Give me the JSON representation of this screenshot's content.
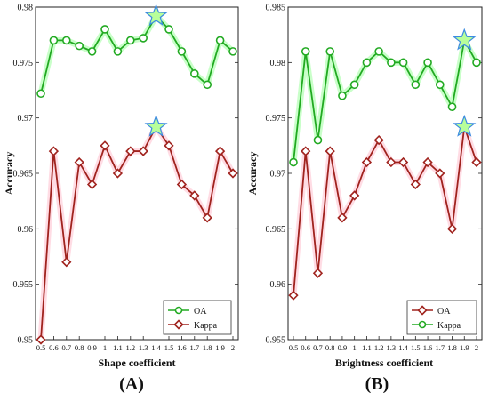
{
  "panels": [
    {
      "panel_label": "(A)",
      "chart_data": {
        "type": "line",
        "xlabel": "Shape coefficient",
        "ylabel": "Accuracy",
        "x": [
          "0.5",
          "0.6",
          "0.7",
          "0.8",
          "0.9",
          "1",
          "1.1",
          "1.2",
          "1.3",
          "1.4",
          "1.5",
          "1.6",
          "1.7",
          "1.8",
          "1.9",
          "2"
        ],
        "ylim": [
          0.95,
          0.98
        ],
        "yticks": [
          "0.95",
          "0.955",
          "0.96",
          "0.965",
          "0.97",
          "0.975",
          "0.98"
        ],
        "legend_position": "bottom-right",
        "legend": [
          "OA",
          "Kappa"
        ],
        "series": [
          {
            "name": "OA",
            "color": "#22aa22",
            "marker": "circle",
            "values": [
              0.9722,
              0.977,
              0.977,
              0.9765,
              0.976,
              0.978,
              0.976,
              0.977,
              0.9772,
              0.9792,
              0.978,
              0.976,
              0.974,
              0.973,
              0.977,
              0.976
            ]
          },
          {
            "name": "Kappa",
            "color": "#a0231e",
            "marker": "diamond",
            "values": [
              0.95,
              0.967,
              0.957,
              0.966,
              0.964,
              0.9675,
              0.965,
              0.967,
              0.967,
              0.9692,
              0.9675,
              0.964,
              0.963,
              0.961,
              0.967,
              0.965
            ]
          }
        ],
        "best_markers": [
          {
            "x": "1.4",
            "y": 0.9792
          },
          {
            "x": "1.4",
            "y": 0.9692
          }
        ]
      }
    },
    {
      "panel_label": "(B)",
      "chart_data": {
        "type": "line",
        "xlabel": "Brightness coefficient",
        "ylabel": "Accuracy",
        "x": [
          "0.5",
          "0.6",
          "0.7",
          "0.8",
          "0.9",
          "1",
          "1.1",
          "1.2",
          "1.3",
          "1.4",
          "1.5",
          "1.6",
          "1.7",
          "1.8",
          "1.9",
          "2"
        ],
        "ylim": [
          0.955,
          0.985
        ],
        "yticks": [
          "0.955",
          "0.96",
          "0.965",
          "0.97",
          "0.975",
          "0.98",
          "0.985"
        ],
        "legend_position": "bottom-right",
        "legend": [
          "OA",
          "Kappa"
        ],
        "series": [
          {
            "name": "OA",
            "color": "#a0231e",
            "marker": "diamond",
            "values": [
              0.959,
              0.972,
              0.961,
              0.972,
              0.966,
              0.968,
              0.971,
              0.973,
              0.971,
              0.971,
              0.969,
              0.971,
              0.97,
              0.965,
              0.9742,
              0.971
            ]
          },
          {
            "name": "Kappa",
            "color": "#22aa22",
            "marker": "circle",
            "values": [
              0.971,
              0.981,
              0.973,
              0.981,
              0.977,
              0.978,
              0.98,
              0.981,
              0.98,
              0.98,
              0.978,
              0.98,
              0.978,
              0.976,
              0.982,
              0.98
            ]
          }
        ],
        "best_markers": [
          {
            "x": "1.9",
            "y": 0.982
          },
          {
            "x": "1.9",
            "y": 0.9742
          }
        ]
      }
    }
  ]
}
